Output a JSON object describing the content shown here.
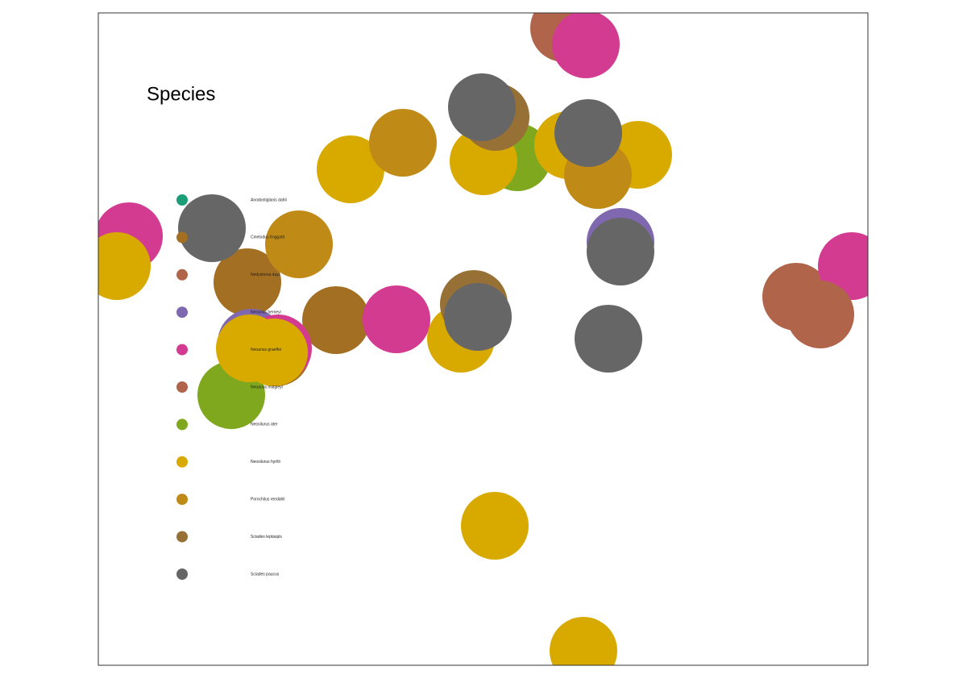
{
  "chart_data": {
    "type": "scatter",
    "legend_title": "Species",
    "xlim": [
      0,
      955
    ],
    "ylim": [
      0,
      809
    ],
    "series": [
      {
        "name": "Anodontiglanis dahli",
        "color": "#1b9e77",
        "x": [],
        "y": []
      },
      {
        "name": "Cinetodus froggatti",
        "color": "#a36f22",
        "x": [
          185,
          295,
          221
        ],
        "y": [
          475,
          428,
          388
        ]
      },
      {
        "name": "Nedystoma dayi",
        "color": "#b0654a",
        "x": [
          578,
          866
        ],
        "y": [
          790,
          457
        ]
      },
      {
        "name": "Neoarius berneyi",
        "color": "#7f68b0",
        "x": [
          648,
          190
        ],
        "y": [
          525,
          400
        ]
      },
      {
        "name": "Neoarius graeffei",
        "color": "#d23b8f",
        "x": [
          605,
          623,
          38,
          370,
          935,
          223
        ],
        "y": [
          770,
          615,
          532,
          429,
          495,
          393
        ]
      },
      {
        "name": "Neoarius midgleyi",
        "color": "#b0654a",
        "x": [
          896
        ],
        "y": [
          435
        ]
      },
      {
        "name": "Neosilurus ater",
        "color": "#7fa81e",
        "x": [
          520,
          165
        ],
        "y": [
          630,
          335
        ]
      },
      {
        "name": "Neosilurus hyrtlii",
        "color": "#d8aa00",
        "x": [
          313,
          478,
          583,
          670,
          23,
          450,
          188,
          218,
          492,
          602
        ],
        "y": [
          615,
          625,
          645,
          633,
          495,
          405,
          393,
          388,
          173,
          18
        ]
      },
      {
        "name": "Porochilus rendahli",
        "color": "#c08a17",
        "x": [
          378,
          620,
          249
        ],
        "y": [
          648,
          608,
          522
        ]
      },
      {
        "name": "Sciades leptaspis",
        "color": "#977035",
        "x": [
          493,
          466
        ],
        "y": [
          680,
          448
        ]
      },
      {
        "name": "Sciades paucus",
        "color": "#666666",
        "x": [
          476,
          608,
          141,
          648,
          471,
          633
        ],
        "y": [
          692,
          660,
          542,
          513,
          432,
          405
        ]
      }
    ]
  }
}
